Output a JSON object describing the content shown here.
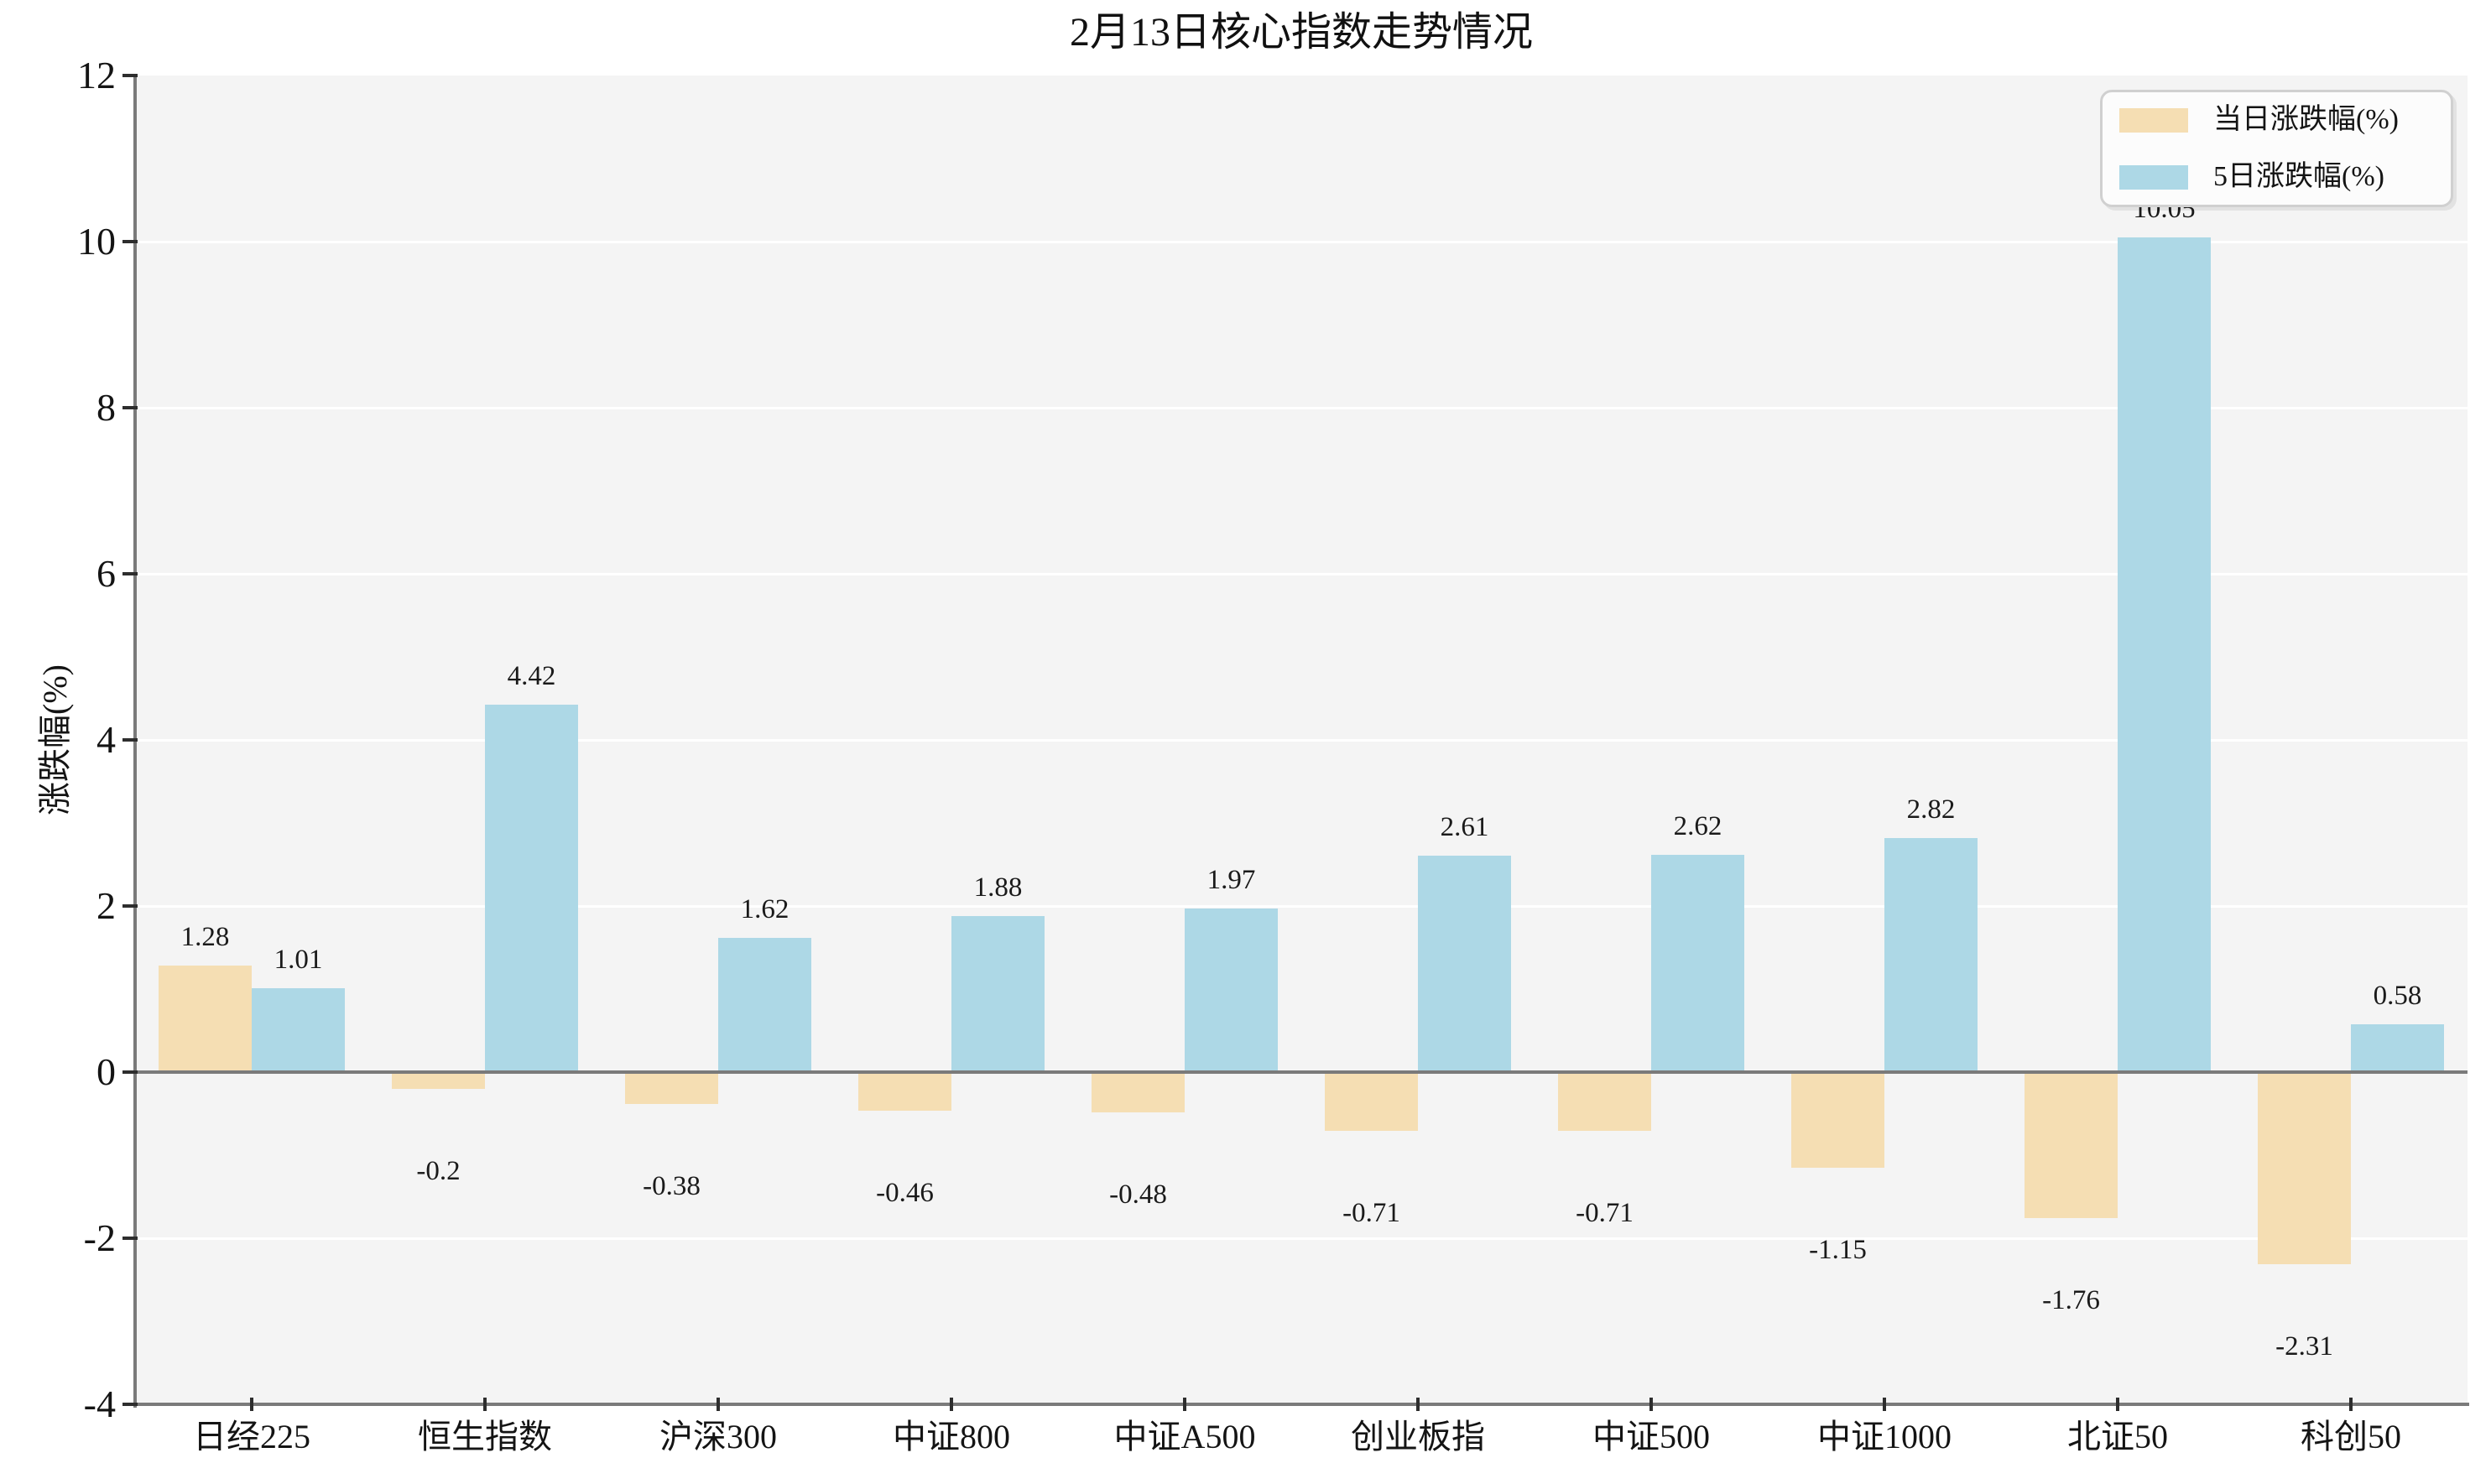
{
  "title": "2月13日核心指数走势情况",
  "chart_data": {
    "type": "bar",
    "categories": [
      "日经225",
      "恒生指数",
      "沪深300",
      "中证800",
      "中证A500",
      "创业板指",
      "中证500",
      "中证1000",
      "北证50",
      "科创50"
    ],
    "series": [
      {
        "name": "当日涨跌幅(%)",
        "key": "daily-change",
        "color": "#F5DEB3",
        "values": [
          1.28,
          -0.2,
          -0.38,
          -0.46,
          -0.48,
          -0.71,
          -0.71,
          -1.15,
          -1.76,
          -2.31
        ]
      },
      {
        "name": "5日涨跌幅(%)",
        "key": "five-day-change",
        "color": "#ADD8E6",
        "values": [
          1.01,
          4.42,
          1.62,
          1.88,
          1.97,
          2.61,
          2.62,
          2.82,
          10.05,
          0.58
        ]
      }
    ],
    "xlabel": "",
    "ylabel": "涨跌幅(%)",
    "ylim": [
      -4,
      12
    ],
    "yticks": [
      -4,
      -2,
      0,
      2,
      4,
      6,
      8,
      10,
      12
    ],
    "gridline_values": [
      -2,
      2,
      4,
      6,
      8,
      10
    ],
    "grid": "horizontal",
    "legend_position": "upper right",
    "colors": {
      "figure_background": "#ffffff",
      "plot_background": "#f4f4f4",
      "gridline": "#ffffff",
      "spine": "#7a7a7a",
      "tick": "#2e2e2e",
      "text": "#141414"
    }
  }
}
